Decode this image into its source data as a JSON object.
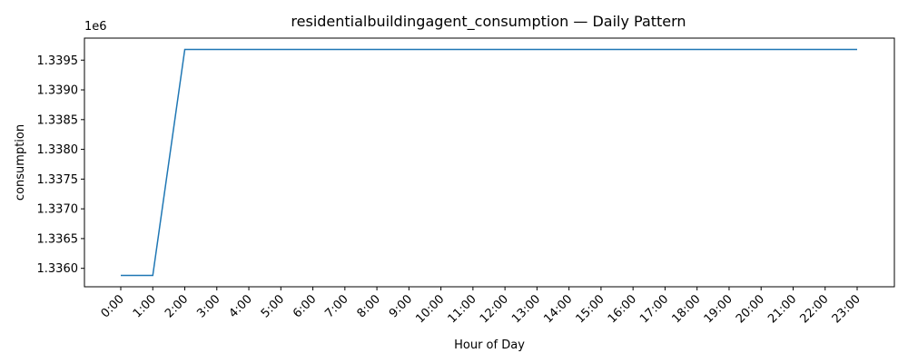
{
  "chart_data": {
    "type": "line",
    "title": "residentialbuildingagent_consumption — Daily Pattern",
    "xlabel": "Hour of Day",
    "ylabel": "consumption",
    "y_offset_label": "1e6",
    "categories": [
      "0:00",
      "1:00",
      "2:00",
      "3:00",
      "4:00",
      "5:00",
      "6:00",
      "7:00",
      "8:00",
      "9:00",
      "10:00",
      "11:00",
      "12:00",
      "13:00",
      "14:00",
      "15:00",
      "16:00",
      "17:00",
      "18:00",
      "19:00",
      "20:00",
      "21:00",
      "22:00",
      "23:00"
    ],
    "series": [
      {
        "color": "#1f77b4",
        "values": [
          1335880,
          1335880,
          1339680,
          1339680,
          1339680,
          1339680,
          1339680,
          1339680,
          1339680,
          1339680,
          1339680,
          1339680,
          1339680,
          1339680,
          1339680,
          1339680,
          1339680,
          1339680,
          1339680,
          1339680,
          1339680,
          1339680,
          1339680,
          1339680
        ]
      }
    ],
    "yticks": [
      "1.3360",
      "1.3365",
      "1.3370",
      "1.3375",
      "1.3380",
      "1.3385",
      "1.3390",
      "1.3395"
    ],
    "ytick_values": [
      1336000,
      1336500,
      1337000,
      1337500,
      1338000,
      1338500,
      1339000,
      1339500
    ],
    "ylim": [
      1335690,
      1339870
    ],
    "grid": false,
    "legend": "none"
  }
}
